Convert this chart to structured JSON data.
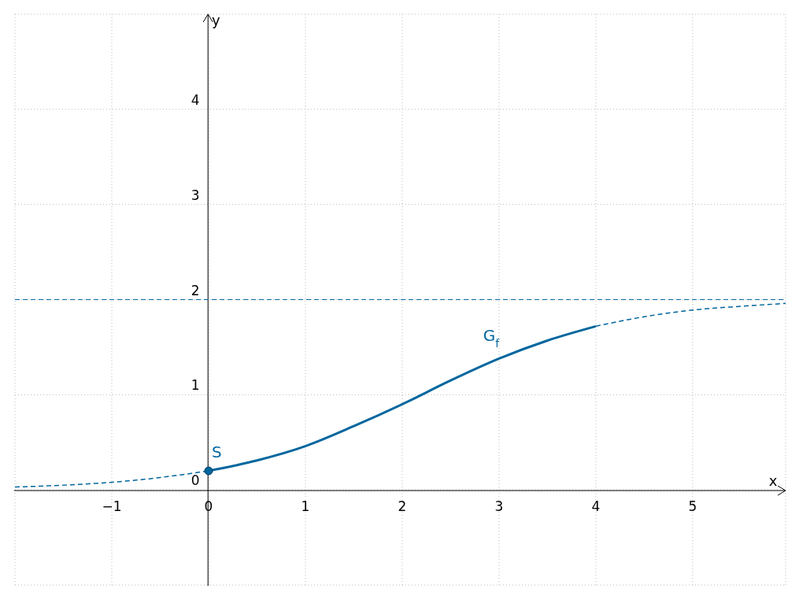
{
  "chart_data": {
    "type": "line",
    "xlabel": "x",
    "ylabel": "y",
    "xlim": [
      -2,
      5.96
    ],
    "ylim": [
      -1,
      5
    ],
    "xticks": [
      -1,
      0,
      1,
      2,
      3,
      4,
      5
    ],
    "yticks": [
      0,
      1,
      2,
      3,
      4
    ],
    "grid": true,
    "marker": "none",
    "series": [
      {
        "color": "#00669e",
        "line_style": "dashed",
        "x": [
          -2,
          -1.5,
          -1,
          -0.5,
          0
        ],
        "values": [
          0.03,
          0.05,
          0.08,
          0.13,
          0.2
        ]
      },
      {
        "name": "G$_{f}$",
        "color": "#00669e",
        "line_style": "solid",
        "x": [
          0,
          0.5,
          1,
          1.5,
          2,
          2.5,
          3,
          3.5,
          4
        ],
        "values": [
          0.2,
          0.31,
          0.46,
          0.67,
          0.9,
          1.15,
          1.38,
          1.57,
          1.72
        ]
      },
      {
        "color": "#00669e",
        "line_style": "dashed",
        "x": [
          4,
          4.5,
          5,
          5.5,
          5.96
        ],
        "values": [
          1.72,
          1.82,
          1.89,
          1.93,
          1.96
        ]
      },
      {
        "name": "S",
        "type": "scatter",
        "marker": "circle",
        "color": "#00669e",
        "x": [
          0
        ],
        "values": [
          0.2
        ]
      }
    ],
    "ref_lines": [
      {
        "axis": "y",
        "value": 2,
        "color": "#00669e",
        "line_style": "dashed"
      }
    ]
  }
}
